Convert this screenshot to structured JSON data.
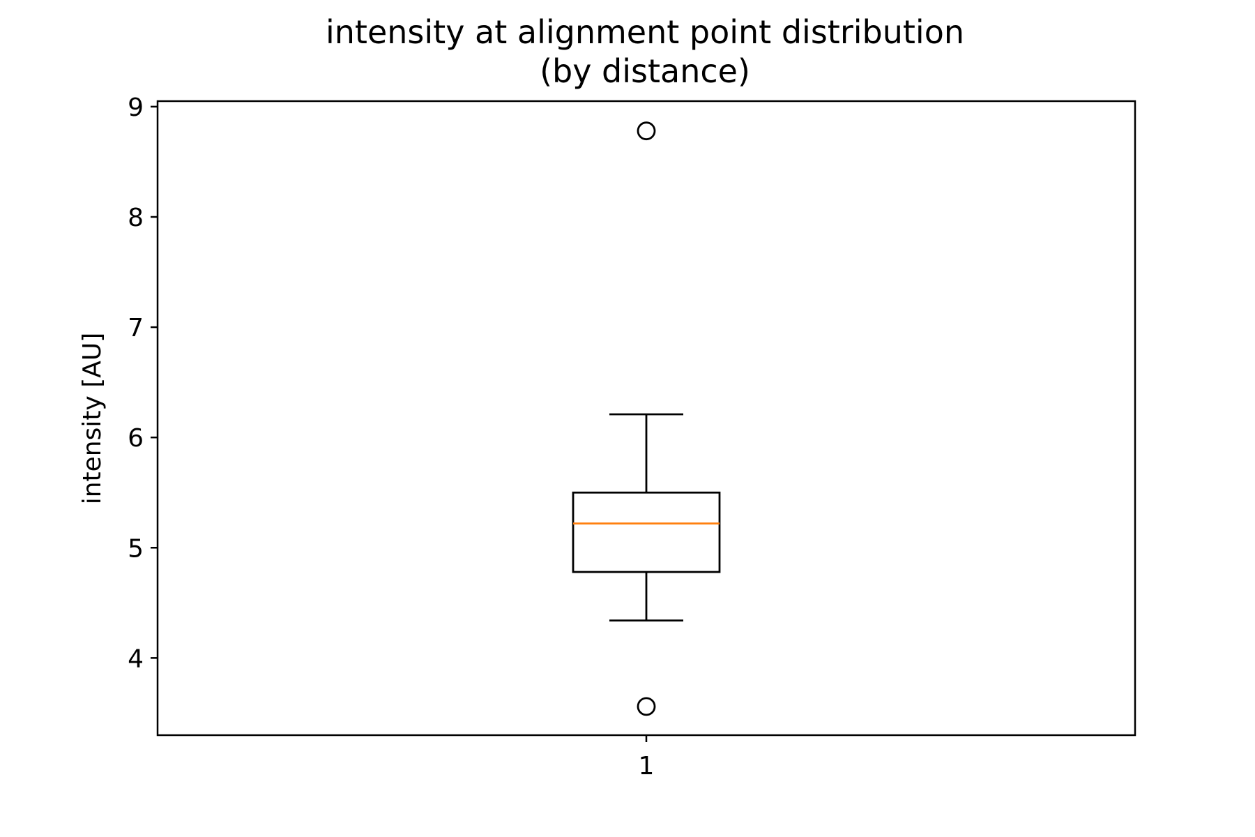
{
  "chart_data": {
    "type": "box",
    "title_lines": [
      "intensity at alignment point distribution",
      "(by distance)"
    ],
    "xlabel": "",
    "ylabel": "intensity [AU]",
    "ylim": [
      3.3,
      9.05
    ],
    "yticks": [
      4,
      5,
      6,
      7,
      8,
      9
    ],
    "categories": [
      "1"
    ],
    "grid": false,
    "boxes": [
      {
        "category": "1",
        "whisker_low": 4.34,
        "q1": 4.78,
        "median": 5.22,
        "q3": 5.5,
        "whisker_high": 6.21,
        "outliers": [
          8.78,
          3.56
        ]
      }
    ],
    "colors": {
      "box": "#000000",
      "median": "#ff7f0e",
      "outlier": "#000000"
    }
  }
}
